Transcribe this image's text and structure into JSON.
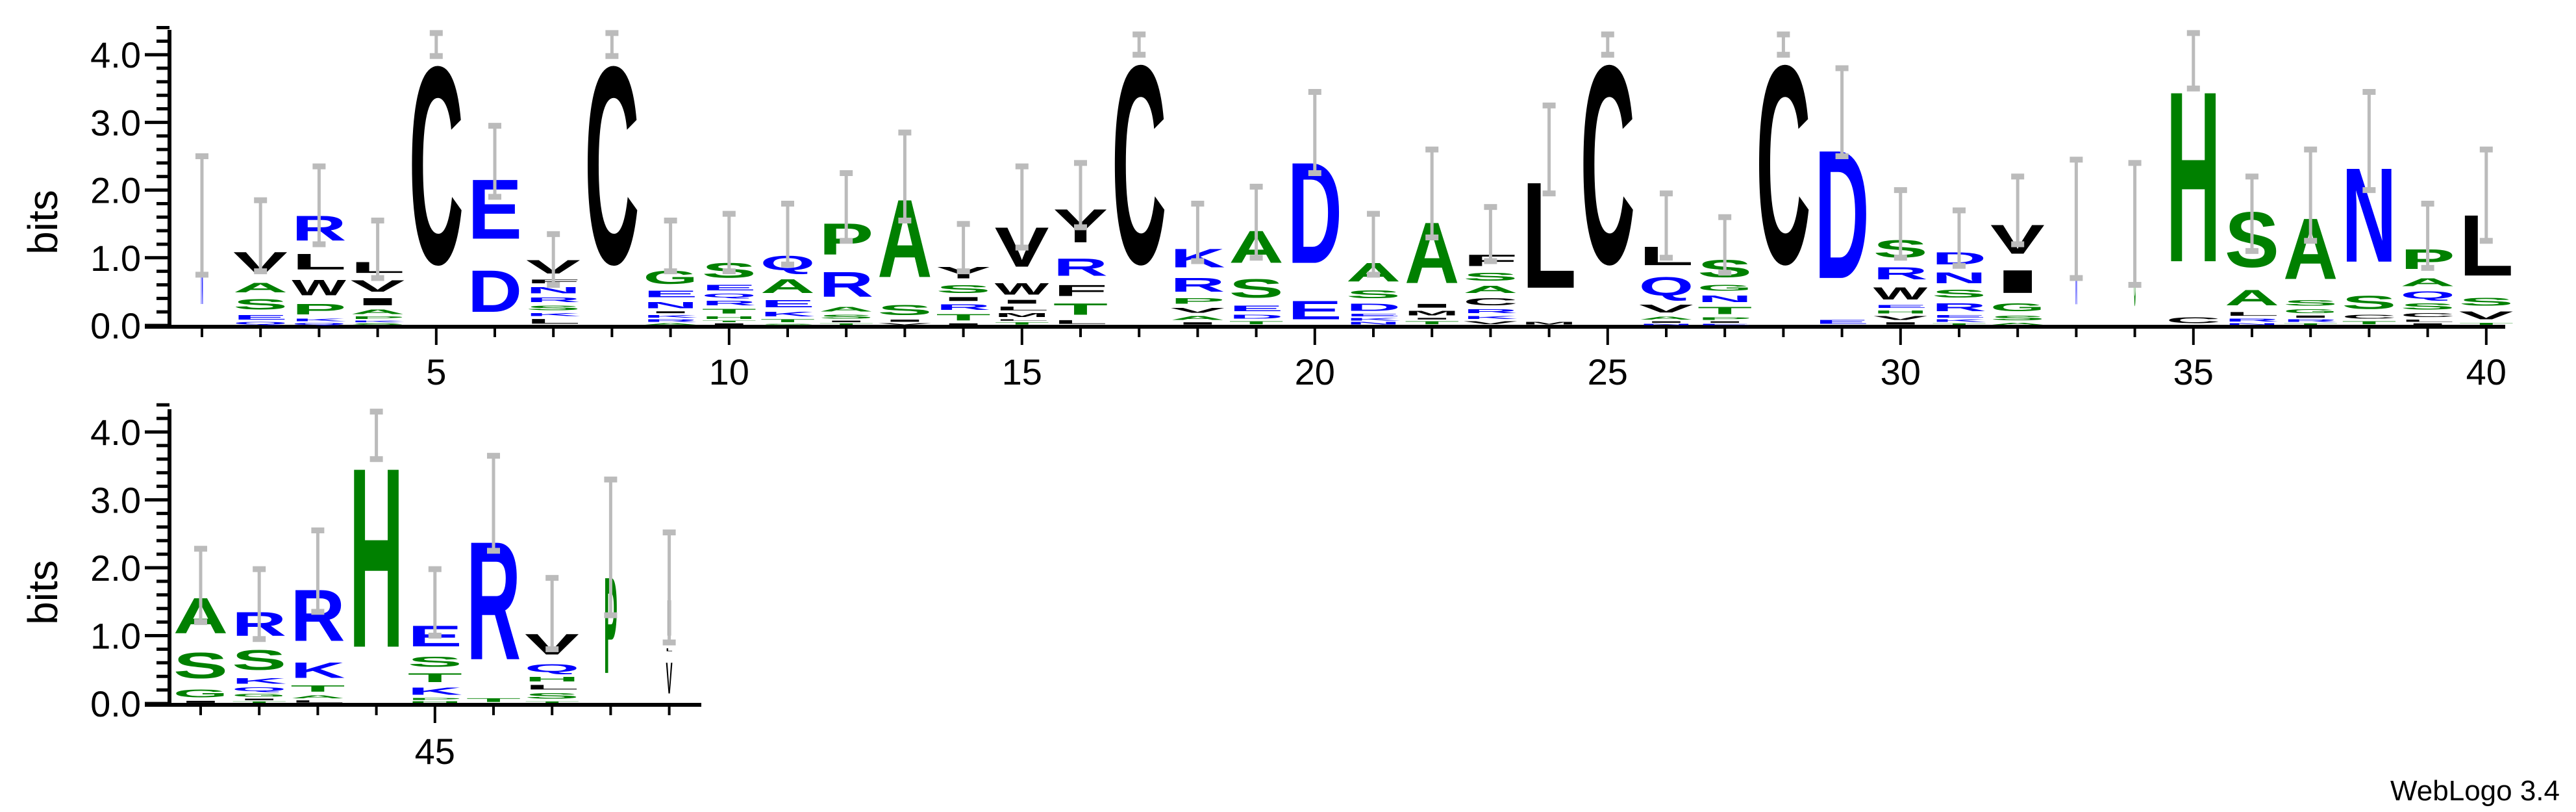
{
  "credit": "WebLogo 3.4",
  "chart_data": {
    "type": "bar",
    "subtype": "sequence-logo (stacked letters)",
    "ylabel": "bits",
    "ylim": [
      0,
      4.32
    ],
    "yticks": [
      "0.0",
      "1.0",
      "2.0",
      "3.0",
      "4.0"
    ],
    "xtick_labels_shown": [
      5,
      10,
      15,
      20,
      25,
      30,
      35,
      40,
      45
    ],
    "error_bar_color": "#BBBBBB",
    "colors": {
      "A": "#008000",
      "S": "#008000",
      "T": "#008000",
      "G": "#008000",
      "P": "#008000",
      "H": "#008000",
      "D": "#0000FF",
      "E": "#0000FF",
      "K": "#0000FF",
      "R": "#0000FF",
      "N": "#0000FF",
      "Q": "#0000FF",
      "C": "#000000",
      "L": "#000000",
      "V": "#000000",
      "I": "#000000",
      "W": "#000000",
      "Y": "#000000",
      "F": "#000000",
      "M": "#000000"
    },
    "panels": [
      {
        "positions": [
          1,
          40
        ]
      },
      {
        "positions": [
          41,
          49
        ]
      }
    ],
    "columns": [
      {
        "pos": 1,
        "weight": 0.04,
        "letters": [
          [
            "N",
            1.6
          ]
        ],
        "err": [
          0.75,
          2.5
        ]
      },
      {
        "pos": 2,
        "letters": [
          [
            "Q",
            0.06
          ],
          [
            "E",
            0.12
          ],
          [
            "S",
            0.26
          ],
          [
            "A",
            0.24
          ],
          [
            "V",
            0.5
          ]
        ],
        "err": [
          0.8,
          1.85
        ]
      },
      {
        "pos": 3,
        "letters": [
          [
            "Q",
            0.05
          ],
          [
            "K",
            0.06
          ],
          [
            "P",
            0.26
          ],
          [
            "W",
            0.38
          ],
          [
            "L",
            0.38
          ],
          [
            "R",
            0.6
          ]
        ],
        "err": [
          1.2,
          2.35
        ]
      },
      {
        "pos": 4,
        "letters": [
          [
            "S",
            0.04
          ],
          [
            "K",
            0.04
          ],
          [
            "P",
            0.06
          ],
          [
            "A",
            0.12
          ],
          [
            "I",
            0.18
          ],
          [
            "V",
            0.28
          ],
          [
            "L",
            0.27
          ]
        ],
        "err": [
          0.7,
          1.55
        ]
      },
      {
        "pos": 5,
        "letters": [
          [
            "C",
            4.68
          ]
        ],
        "err": [
          3.98,
          4.32
        ]
      },
      {
        "pos": 6,
        "letters": [
          [
            "D",
            1.0
          ],
          [
            "E",
            1.42
          ]
        ],
        "err": [
          1.9,
          2.95
        ]
      },
      {
        "pos": 7,
        "letters": [
          [
            "L",
            0.12
          ],
          [
            "K",
            0.08
          ],
          [
            "S",
            0.12
          ],
          [
            "R",
            0.12
          ],
          [
            "N",
            0.16
          ],
          [
            "F",
            0.1
          ],
          [
            "V",
            0.33
          ]
        ],
        "err": [
          0.6,
          1.35
        ]
      },
      {
        "pos": 8,
        "letters": [
          [
            "C",
            4.68
          ]
        ],
        "err": [
          3.98,
          4.32
        ]
      },
      {
        "pos": 9,
        "letters": [
          [
            "A",
            0.04
          ],
          [
            "R",
            0.06
          ],
          [
            "K",
            0.07
          ],
          [
            "I",
            0.05
          ],
          [
            "N",
            0.16
          ],
          [
            "E",
            0.17
          ],
          [
            "G",
            0.32
          ]
        ],
        "err": [
          0.8,
          1.55
        ]
      },
      {
        "pos": 10,
        "letters": [
          [
            "I",
            0.04
          ],
          [
            "T",
            0.04
          ],
          [
            "H",
            0.07
          ],
          [
            "T",
            0.12
          ],
          [
            "R",
            0.12
          ],
          [
            "Q",
            0.1
          ],
          [
            "E",
            0.14
          ],
          [
            "S",
            0.36
          ]
        ],
        "err": [
          0.8,
          1.65
        ]
      },
      {
        "pos": 11,
        "letters": [
          [
            "S",
            0.03
          ],
          [
            "T",
            0.08
          ],
          [
            "K",
            0.12
          ],
          [
            "E",
            0.18
          ],
          [
            "A",
            0.34
          ],
          [
            "Q",
            0.35
          ]
        ],
        "err": [
          0.9,
          1.8
        ]
      },
      {
        "pos": 12,
        "letters": [
          [
            "T",
            0.04
          ],
          [
            "I",
            0.04
          ],
          [
            "S",
            0.1
          ],
          [
            "A",
            0.12
          ],
          [
            "R",
            0.6
          ],
          [
            "P",
            0.75
          ]
        ],
        "err": [
          1.25,
          2.25
        ]
      },
      {
        "pos": 13,
        "letters": [
          [
            "V",
            0.04
          ],
          [
            "I",
            0.06
          ],
          [
            "S",
            0.25
          ],
          [
            "A",
            1.85
          ]
        ],
        "err": [
          1.55,
          2.85
        ]
      },
      {
        "pos": 14,
        "letters": [
          [
            "I",
            0.04
          ],
          [
            "T",
            0.16
          ],
          [
            "R",
            0.14
          ],
          [
            "I",
            0.1
          ],
          [
            "S",
            0.2
          ],
          [
            "Y",
            0.28
          ]
        ],
        "err": [
          0.8,
          1.5
        ]
      },
      {
        "pos": 15,
        "letters": [
          [
            "T",
            0.06
          ],
          [
            "L",
            0.04
          ],
          [
            "M",
            0.1
          ],
          [
            "L",
            0.1
          ],
          [
            "I",
            0.1
          ],
          [
            "W",
            0.28
          ],
          [
            "V",
            0.95
          ]
        ],
        "err": [
          1.15,
          2.35
        ]
      },
      {
        "pos": 16,
        "letters": [
          [
            "L",
            0.1
          ],
          [
            "T",
            0.28
          ],
          [
            "F",
            0.27
          ],
          [
            "R",
            0.42
          ],
          [
            "Y",
            0.8
          ]
        ],
        "err": [
          1.45,
          2.4
        ]
      },
      {
        "pos": 17,
        "letters": [
          [
            "C",
            4.7
          ]
        ],
        "err": [
          4.0,
          4.3
        ]
      },
      {
        "pos": 18,
        "letters": [
          [
            "I",
            0.06
          ],
          [
            "A",
            0.1
          ],
          [
            "V",
            0.13
          ],
          [
            "P",
            0.14
          ],
          [
            "R",
            0.34
          ],
          [
            "K",
            0.45
          ]
        ],
        "err": [
          0.95,
          1.8
        ]
      },
      {
        "pos": 19,
        "letters": [
          [
            "T",
            0.08
          ],
          [
            "D",
            0.1
          ],
          [
            "E",
            0.14
          ],
          [
            "S",
            0.45
          ],
          [
            "A",
            0.77
          ]
        ],
        "err": [
          1.0,
          2.05
        ]
      },
      {
        "pos": 20,
        "letters": [
          [
            "E",
            0.45
          ],
          [
            "D",
            2.4
          ]
        ],
        "err": [
          2.25,
          3.45
        ]
      },
      {
        "pos": 21,
        "letters": [
          [
            "N",
            0.06
          ],
          [
            "K",
            0.06
          ],
          [
            "E",
            0.06
          ],
          [
            "D",
            0.18
          ],
          [
            "S",
            0.2
          ],
          [
            "A",
            0.45
          ]
        ],
        "err": [
          0.75,
          1.65
        ]
      },
      {
        "pos": 22,
        "letters": [
          [
            "T",
            0.08
          ],
          [
            "I",
            0.04
          ],
          [
            "M",
            0.12
          ],
          [
            "I",
            0.1
          ],
          [
            "A",
            1.45
          ]
        ],
        "err": [
          1.3,
          2.6
        ]
      },
      {
        "pos": 23,
        "letters": [
          [
            "V",
            0.08
          ],
          [
            "K",
            0.08
          ],
          [
            "R",
            0.1
          ],
          [
            "C",
            0.18
          ],
          [
            "A",
            0.18
          ],
          [
            "S",
            0.2
          ],
          [
            "F",
            0.28
          ]
        ],
        "err": [
          0.95,
          1.75
        ]
      },
      {
        "pos": 24,
        "letters": [
          [
            "M",
            0.06
          ],
          [
            "L",
            2.52
          ]
        ],
        "err": [
          1.95,
          3.25
        ]
      },
      {
        "pos": 25,
        "letters": [
          [
            "C",
            4.7
          ]
        ],
        "err": [
          4.0,
          4.3
        ]
      },
      {
        "pos": 26,
        "letters": [
          [
            "N",
            0.03
          ],
          [
            "I",
            0.04
          ],
          [
            "A",
            0.08
          ],
          [
            "V",
            0.2
          ],
          [
            "Q",
            0.45
          ],
          [
            "L",
            0.45
          ]
        ],
        "err": [
          1.0,
          1.95
        ]
      },
      {
        "pos": 27,
        "letters": [
          [
            "E",
            0.03
          ],
          [
            "I",
            0.04
          ],
          [
            "P",
            0.06
          ],
          [
            "T",
            0.18
          ],
          [
            "N",
            0.17
          ],
          [
            "G",
            0.15
          ],
          [
            "S",
            0.42
          ]
        ],
        "err": [
          0.78,
          1.6
        ]
      },
      {
        "pos": 28,
        "letters": [
          [
            "C",
            4.7
          ]
        ],
        "err": [
          4.0,
          4.3
        ]
      },
      {
        "pos": 29,
        "letters": [
          [
            "E",
            0.1
          ],
          [
            "D",
            3.05
          ]
        ],
        "err": [
          2.5,
          3.8
        ]
      },
      {
        "pos": 30,
        "letters": [
          [
            "I",
            0.06
          ],
          [
            "V",
            0.1
          ],
          [
            "H",
            0.08
          ],
          [
            "E",
            0.08
          ],
          [
            "W",
            0.3
          ],
          [
            "R",
            0.3
          ],
          [
            "S",
            0.42
          ]
        ],
        "err": [
          1.0,
          2.0
        ]
      },
      {
        "pos": 31,
        "letters": [
          [
            "T",
            0.04
          ],
          [
            "K",
            0.06
          ],
          [
            "E",
            0.07
          ],
          [
            "R",
            0.2
          ],
          [
            "S",
            0.2
          ],
          [
            "N",
            0.27
          ],
          [
            "D",
            0.3
          ]
        ],
        "err": [
          0.88,
          1.7
        ]
      },
      {
        "pos": 32,
        "letters": [
          [
            "A",
            0.05
          ],
          [
            "S",
            0.12
          ],
          [
            "G",
            0.2
          ],
          [
            "I",
            0.55
          ],
          [
            "V",
            0.7
          ]
        ],
        "err": [
          1.2,
          2.2
        ]
      },
      {
        "pos": 33,
        "weight": 0.03,
        "letters": [
          [
            "N",
            1.58
          ]
        ],
        "err": [
          0.7,
          2.45
        ]
      },
      {
        "pos": 34,
        "weight": 0.03,
        "letters": [
          [
            "G",
            1.5
          ]
        ],
        "err": [
          0.6,
          2.4
        ]
      },
      {
        "pos": 35,
        "letters": [
          [
            "C",
            0.15
          ],
          [
            "H",
            4.05
          ]
        ],
        "err": [
          3.5,
          4.32
        ]
      },
      {
        "pos": 36,
        "letters": [
          [
            "N",
            0.04
          ],
          [
            "R",
            0.08
          ],
          [
            "L",
            0.1
          ],
          [
            "A",
            0.38
          ],
          [
            "S",
            1.32
          ]
        ],
        "err": [
          1.1,
          2.2
        ]
      },
      {
        "pos": 37,
        "letters": [
          [
            "T",
            0.04
          ],
          [
            "R",
            0.06
          ],
          [
            "I",
            0.06
          ],
          [
            "G",
            0.1
          ],
          [
            "S",
            0.14
          ],
          [
            "A",
            1.45
          ]
        ],
        "err": [
          1.25,
          2.6
        ]
      },
      {
        "pos": 38,
        "letters": [
          [
            "T",
            0.08
          ],
          [
            "C",
            0.1
          ],
          [
            "S",
            0.32
          ],
          [
            "N",
            2.24
          ]
        ],
        "err": [
          2.0,
          3.45
        ]
      },
      {
        "pos": 39,
        "letters": [
          [
            "I",
            0.04
          ],
          [
            "L",
            0.06
          ],
          [
            "C",
            0.1
          ],
          [
            "S",
            0.16
          ],
          [
            "Q",
            0.18
          ],
          [
            "A",
            0.2
          ],
          [
            "P",
            0.48
          ]
        ],
        "err": [
          0.85,
          1.8
        ]
      },
      {
        "pos": 40,
        "letters": [
          [
            "T",
            0.05
          ],
          [
            "V",
            0.2
          ],
          [
            "S",
            0.2
          ],
          [
            "L",
            1.45
          ]
        ],
        "err": [
          1.25,
          2.6
        ]
      },
      {
        "pos": 41,
        "letters": [
          [
            "I",
            0.05
          ],
          [
            "G",
            0.2
          ],
          [
            "S",
            0.62
          ],
          [
            "A",
            0.85
          ]
        ],
        "err": [
          1.2,
          2.28
        ]
      },
      {
        "pos": 42,
        "letters": [
          [
            "T",
            0.04
          ],
          [
            "I",
            0.04
          ],
          [
            "G",
            0.08
          ],
          [
            "Q",
            0.1
          ],
          [
            "K",
            0.14
          ],
          [
            "S",
            0.48
          ],
          [
            "R",
            0.58
          ]
        ],
        "err": [
          0.95,
          1.98
        ]
      },
      {
        "pos": 43,
        "letters": [
          [
            "L",
            0.06
          ],
          [
            "A",
            0.08
          ],
          [
            "T",
            0.16
          ],
          [
            "K",
            0.38
          ],
          [
            "R",
            1.22
          ]
        ],
        "err": [
          1.35,
          2.55
        ]
      },
      {
        "pos": 44,
        "letters": [
          [
            "H",
            4.25
          ]
        ],
        "err": [
          3.6,
          4.3
        ]
      },
      {
        "pos": 45,
        "letters": [
          [
            "H",
            0.04
          ],
          [
            "P",
            0.05
          ],
          [
            "K",
            0.18
          ],
          [
            "T",
            0.22
          ],
          [
            "S",
            0.25
          ],
          [
            "E",
            0.5
          ]
        ],
        "err": [
          1.0,
          1.98
        ]
      },
      {
        "pos": 46,
        "letters": [
          [
            "T",
            0.1
          ],
          [
            "R",
            2.8
          ]
        ],
        "err": [
          2.25,
          3.65
        ]
      },
      {
        "pos": 47,
        "letters": [
          [
            "T",
            0.04
          ],
          [
            "S",
            0.14
          ],
          [
            "L",
            0.12
          ],
          [
            "H",
            0.12
          ],
          [
            "Q",
            0.2
          ],
          [
            "V",
            0.5
          ]
        ],
        "err": [
          0.8,
          1.85
        ]
      },
      {
        "pos": 48,
        "weight": 0.25,
        "letters": [
          [
            "P",
            2.28
          ]
        ],
        "err": [
          1.3,
          3.3
        ]
      },
      {
        "pos": 49,
        "weight": 0.12,
        "letters": [
          [
            "V",
            0.75
          ],
          [
            "L",
            0.08
          ],
          [
            "I",
            0.85
          ]
        ],
        "err": [
          0.9,
          2.52
        ]
      }
    ]
  }
}
